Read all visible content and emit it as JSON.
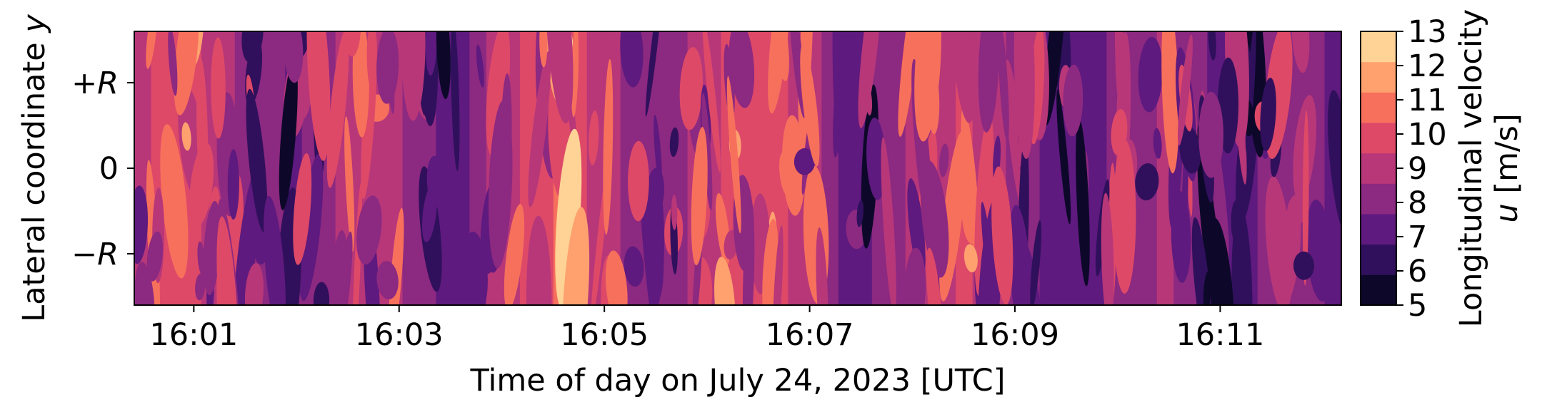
{
  "chart_data": {
    "type": "heatmap",
    "title": "",
    "xlabel": "Time of day on July 24, 2023 [UTC]",
    "ylabel": "Lateral coordinate y",
    "ylabel_parts": {
      "text": "Lateral coordinate ",
      "var": "y"
    },
    "x_ticks": [
      "16:01",
      "16:03",
      "16:05",
      "16:07",
      "16:09",
      "16:11"
    ],
    "x_tick_minutes": [
      1,
      3,
      5,
      7,
      9,
      11
    ],
    "xlim_minutes": [
      0.42,
      12.18
    ],
    "y_ticks": [
      {
        "label": "+R",
        "sign": "+",
        "var": "R",
        "value": 1
      },
      {
        "label": "0",
        "sign": "",
        "var": "",
        "value": 0
      },
      {
        "label": "−R",
        "sign": "−",
        "var": "R",
        "value": -1
      }
    ],
    "ylim": [
      -1.6,
      1.6
    ],
    "colorbar": {
      "label_line1": "Longitudinal velocity",
      "label_line2_var": "u",
      "label_line2_rest": " [m/s]",
      "ticks": [
        5,
        6,
        7,
        8,
        9,
        10,
        11,
        12,
        13
      ],
      "levels": [
        5,
        6,
        7,
        8,
        9,
        10,
        11,
        12,
        13
      ],
      "colors": [
        "#0d0829",
        "#30105c",
        "#5e1a7e",
        "#8c2981",
        "#b73779",
        "#de4968",
        "#f7705c",
        "#fea16e",
        "#fed395"
      ],
      "colormap": "magma"
    },
    "band_speeds_m_s": [
      9.8,
      10.1,
      10.4,
      10.2,
      9.6,
      9.0,
      8.6,
      8.3,
      8.0,
      7.9,
      8.2,
      8.6,
      9.1,
      9.6,
      9.9,
      9.4,
      8.8,
      8.2,
      7.6,
      7.8,
      8.5,
      9.3,
      9.9,
      10.4,
      10.8,
      11.2,
      10.6,
      9.8,
      9.2,
      8.7,
      8.3,
      8.1,
      8.6,
      9.0,
      9.5,
      10.1,
      10.5,
      10.9,
      10.4,
      9.7,
      9.1,
      8.5,
      7.9,
      7.5,
      8.0,
      8.6,
      9.2,
      9.6,
      9.9,
      10.3,
      9.8,
      9.3,
      8.8,
      8.3,
      7.8,
      7.3,
      7.0,
      7.4,
      8.0,
      8.4,
      8.9,
      9.2,
      8.7,
      8.1,
      7.6,
      7.3,
      7.6,
      8.1,
      8.6,
      8.8,
      8.2,
      7.5
    ]
  }
}
